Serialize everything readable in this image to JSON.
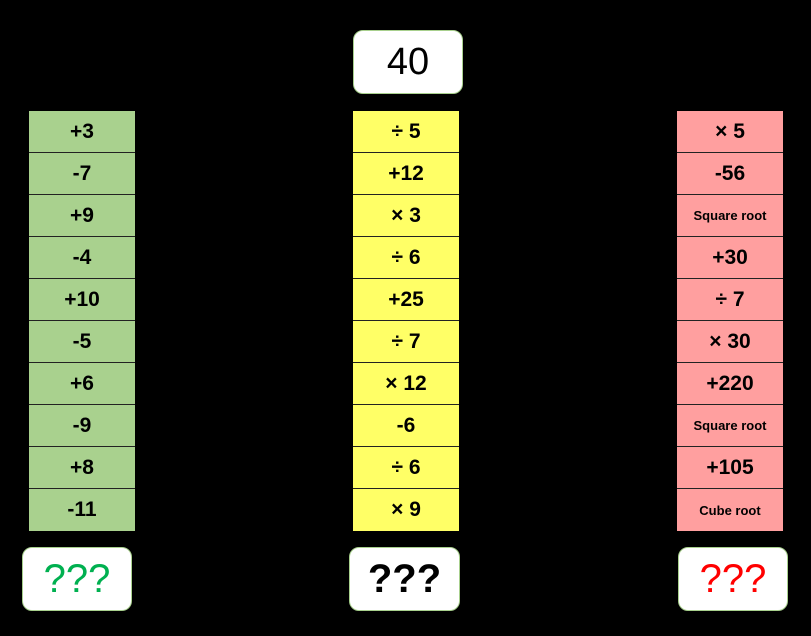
{
  "start": {
    "value": "40"
  },
  "columns": {
    "green": {
      "color": "#a9d18e",
      "steps": [
        "+3",
        "-7",
        "+9",
        "-4",
        "+10",
        "-5",
        "+6",
        "-9",
        "+8",
        "-11"
      ],
      "answer": "???",
      "answer_color": "#00b050"
    },
    "yellow": {
      "color": "#ffff66",
      "steps": [
        "÷ 5",
        "+12",
        "× 3",
        "÷ 6",
        "+25",
        "÷ 7",
        "× 12",
        "-6",
        "÷ 6",
        "× 9"
      ],
      "answer": "???",
      "answer_color": "#000000"
    },
    "red": {
      "color": "#ff9f9f",
      "steps": [
        "× 5",
        "-56",
        "Square root",
        "+30",
        "÷ 7",
        "× 30",
        "+220",
        "Square root",
        "+105",
        "Cube root"
      ],
      "answer": "???",
      "answer_color": "#ff0000"
    }
  }
}
